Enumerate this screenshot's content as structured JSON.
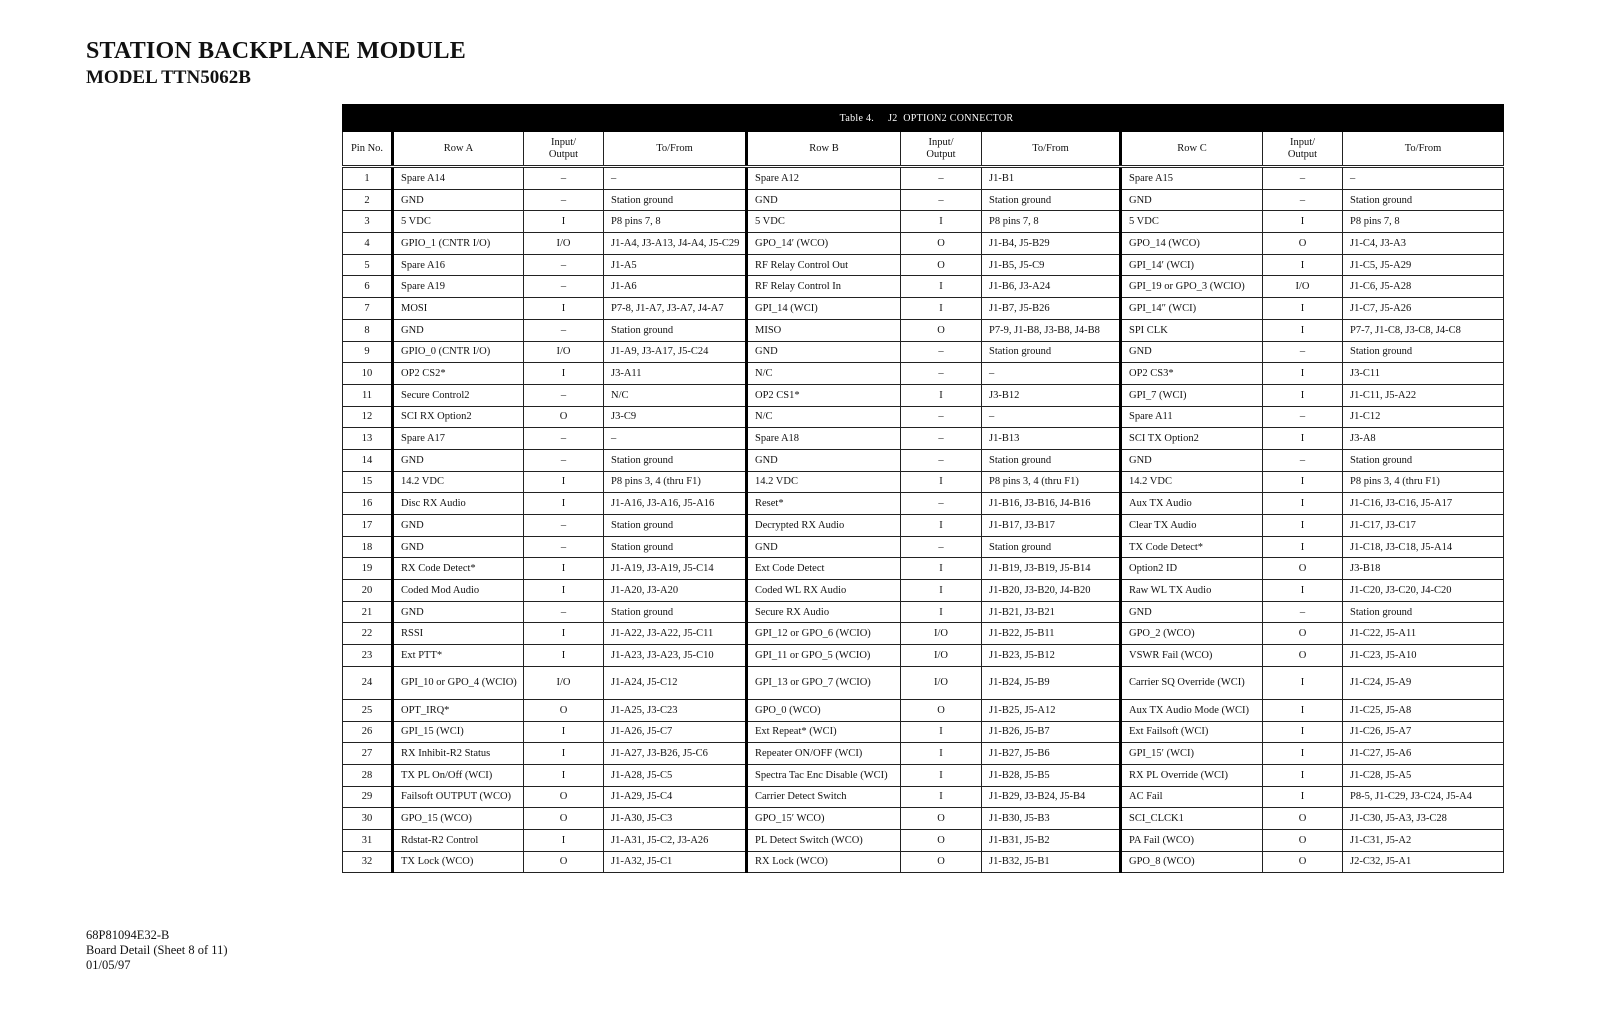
{
  "header": {
    "title": "STATION BACKPLANE MODULE",
    "subtitle": "MODEL TTN5062B"
  },
  "table": {
    "caption": "Table 4.     J2  OPTION2 CONNECTOR",
    "columns": [
      "Pin No.",
      "Row A",
      "Input/ Output",
      "To/From",
      "Row B",
      "Input/ Output",
      "To/From",
      "Row C",
      "Input/ Output",
      "To/From"
    ],
    "rows": [
      [
        "1",
        "Spare A14",
        "–",
        "–",
        "Spare A12",
        "–",
        "J1-B1",
        "Spare A15",
        "–",
        "–"
      ],
      [
        "2",
        "GND",
        "–",
        "Station ground",
        "GND",
        "–",
        "Station ground",
        "GND",
        "–",
        "Station ground"
      ],
      [
        "3",
        "5 VDC",
        "I",
        "P8 pins 7, 8",
        "5 VDC",
        "I",
        "P8 pins 7, 8",
        "5 VDC",
        "I",
        "P8 pins 7, 8"
      ],
      [
        "4",
        "GPIO_1 (CNTR I/O)",
        "I/O",
        "J1-A4, J3-A13, J4-A4, J5-C29",
        "GPO_14′ (WCO)",
        "O",
        "J1-B4, J5-B29",
        "GPO_14 (WCO)",
        "O",
        "J1-C4, J3-A3"
      ],
      [
        "5",
        "Spare A16",
        "–",
        "J1-A5",
        "RF Relay Control Out",
        "O",
        "J1-B5, J5-C9",
        "GPI_14′ (WCI)",
        "I",
        "J1-C5, J5-A29"
      ],
      [
        "6",
        "Spare A19",
        "–",
        "J1-A6",
        "RF Relay Control In",
        "I",
        "J1-B6, J3-A24",
        "GPI_19 or GPO_3 (WCIO)",
        "I/O",
        "J1-C6, J5-A28"
      ],
      [
        "7",
        "MOSI",
        "I",
        "P7-8, J1-A7, J3-A7, J4-A7",
        "GPI_14 (WCI)",
        "I",
        "J1-B7, J5-B26",
        "GPI_14″ (WCI)",
        "I",
        "J1-C7, J5-A26"
      ],
      [
        "8",
        "GND",
        "–",
        "Station ground",
        "MISO",
        "O",
        "P7-9, J1-B8, J3-B8, J4-B8",
        "SPI CLK",
        "I",
        "P7-7, J1-C8, J3-C8, J4-C8"
      ],
      [
        "9",
        "GPIO_0 (CNTR I/O)",
        "I/O",
        "J1-A9, J3-A17, J5-C24",
        "GND",
        "–",
        "Station ground",
        "GND",
        "–",
        "Station ground"
      ],
      [
        "10",
        "OP2 CS2*",
        "I",
        "J3-A11",
        "N/C",
        "–",
        "–",
        "OP2 CS3*",
        "I",
        "J3-C11"
      ],
      [
        "11",
        "Secure Control2",
        "–",
        "N/C",
        "OP2 CS1*",
        "I",
        "J3-B12",
        "GPI_7 (WCI)",
        "I",
        "J1-C11, J5-A22"
      ],
      [
        "12",
        "SCI RX Option2",
        "O",
        "J3-C9",
        "N/C",
        "–",
        "–",
        "Spare A11",
        "–",
        "J1-C12"
      ],
      [
        "13",
        "Spare A17",
        "–",
        "–",
        "Spare A18",
        "–",
        "J1-B13",
        "SCI TX Option2",
        "I",
        "J3-A8"
      ],
      [
        "14",
        "GND",
        "–",
        "Station ground",
        "GND",
        "–",
        "Station ground",
        "GND",
        "–",
        "Station ground"
      ],
      [
        "15",
        "14.2 VDC",
        "I",
        "P8 pins 3, 4 (thru F1)",
        "14.2 VDC",
        "I",
        "P8 pins 3, 4 (thru F1)",
        "14.2 VDC",
        "I",
        "P8 pins 3, 4 (thru F1)"
      ],
      [
        "16",
        "Disc RX Audio",
        "I",
        "J1-A16, J3-A16, J5-A16",
        "Reset*",
        "–",
        "J1-B16, J3-B16, J4-B16",
        "Aux TX Audio",
        "I",
        "J1-C16, J3-C16, J5-A17"
      ],
      [
        "17",
        "GND",
        "–",
        "Station ground",
        "Decrypted RX Audio",
        "I",
        "J1-B17, J3-B17",
        "Clear TX Audio",
        "I",
        "J1-C17, J3-C17"
      ],
      [
        "18",
        "GND",
        "–",
        "Station ground",
        "GND",
        "–",
        "Station ground",
        "TX Code Detect*",
        "I",
        "J1-C18, J3-C18, J5-A14"
      ],
      [
        "19",
        "RX Code Detect*",
        "I",
        "J1-A19, J3-A19, J5-C14",
        "Ext Code Detect",
        "I",
        "J1-B19, J3-B19, J5-B14",
        "Option2 ID",
        "O",
        "J3-B18"
      ],
      [
        "20",
        "Coded Mod Audio",
        "I",
        "J1-A20, J3-A20",
        "Coded WL RX Audio",
        "I",
        "J1-B20, J3-B20, J4-B20",
        "Raw WL TX Audio",
        "I",
        "J1-C20, J3-C20, J4-C20"
      ],
      [
        "21",
        "GND",
        "–",
        "Station ground",
        "Secure RX Audio",
        "I",
        "J1-B21, J3-B21",
        "GND",
        "–",
        "Station ground"
      ],
      [
        "22",
        "RSSI",
        "I",
        "J1-A22, J3-A22, J5-C11",
        "GPI_12 or GPO_6 (WCIO)",
        "I/O",
        "J1-B22, J5-B11",
        "GPO_2 (WCO)",
        "O",
        "J1-C22, J5-A11"
      ],
      [
        "23",
        "Ext PTT*",
        "I",
        "J1-A23, J3-A23, J5-C10",
        "GPI_11 or GPO_5 (WCIO)",
        "I/O",
        "J1-B23, J5-B12",
        "VSWR Fail (WCO)",
        "O",
        "J1-C23, J5-A10"
      ],
      [
        "24",
        "GPI_10 or GPO_4 (WCIO)",
        "I/O",
        "J1-A24, J5-C12",
        "GPI_13 or GPO_7 (WCIO)",
        "I/O",
        "J1-B24, J5-B9",
        "Carrier SQ Override (WCI)",
        "I",
        "J1-C24, J5-A9"
      ],
      [
        "25",
        "OPT_IRQ*",
        "O",
        "J1-A25, J3-C23",
        "GPO_0 (WCO)",
        "O",
        "J1-B25, J5-A12",
        "Aux TX Audio Mode (WCI)",
        "I",
        "J1-C25, J5-A8"
      ],
      [
        "26",
        "GPI_15 (WCI)",
        "I",
        "J1-A26, J5-C7",
        "Ext Repeat* (WCI)",
        "I",
        "J1-B26, J5-B7",
        "Ext Failsoft (WCI)",
        "I",
        "J1-C26, J5-A7"
      ],
      [
        "27",
        "RX Inhibit-R2 Status",
        "I",
        "J1-A27, J3-B26, J5-C6",
        "Repeater ON/OFF (WCI)",
        "I",
        "J1-B27, J5-B6",
        "GPI_15′ (WCI)",
        "I",
        "J1-C27, J5-A6"
      ],
      [
        "28",
        "TX PL On/Off (WCI)",
        "I",
        "J1-A28, J5-C5",
        "Spectra Tac Enc Disable (WCI)",
        "I",
        "J1-B28, J5-B5",
        "RX PL Override (WCI)",
        "I",
        "J1-C28, J5-A5"
      ],
      [
        "29",
        "Failsoft OUTPUT (WCO)",
        "O",
        "J1-A29, J5-C4",
        "Carrier Detect Switch",
        "I",
        "J1-B29, J3-B24, J5-B4",
        "AC Fail",
        "I",
        "P8-5,  J1-C29, J3-C24, J5-A4"
      ],
      [
        "30",
        "GPO_15 (WCO)",
        "O",
        "J1-A30, J5-C3",
        "GPO_15′ WCO)",
        "O",
        "J1-B30, J5-B3",
        "SCI_CLCK1",
        "O",
        "J1-C30, J5-A3, J3-C28"
      ],
      [
        "31",
        "Rdstat-R2 Control",
        "I",
        "J1-A31, J5-C2, J3-A26",
        "PL Detect Switch (WCO)",
        "O",
        "J1-B31, J5-B2",
        "PA Fail (WCO)",
        "O",
        "J1-C31, J5-A2"
      ],
      [
        "32",
        "TX Lock (WCO)",
        "O",
        "J1-A32, J5-C1",
        "RX Lock (WCO)",
        "O",
        "J1-B32, J5-B1",
        "GPO_8 (WCO)",
        "O",
        "J2-C32, J5-A1"
      ]
    ]
  },
  "footer": {
    "doc_number": "68P81094E32-B",
    "sheet": "Board Detail (Sheet 8 of 11)",
    "date": "01/05/97"
  }
}
